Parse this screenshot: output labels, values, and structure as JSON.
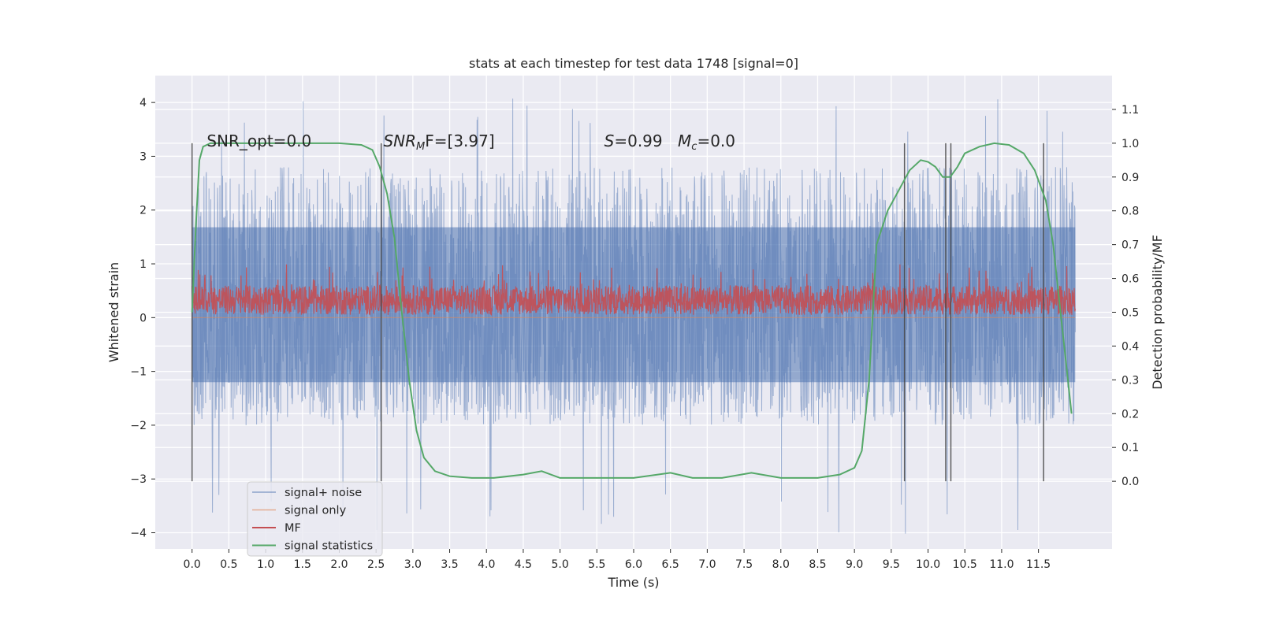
{
  "chart_data": {
    "type": "line",
    "title": "stats at each timestep for test data 1748 [signal=0]",
    "xlabel": "Time (s)",
    "ylabel_left": "Whitened strain",
    "ylabel_right": "Detection probability/MF",
    "xlim": [
      -0.5,
      12.5
    ],
    "ylim_left": [
      -4.3,
      4.5
    ],
    "ylim_right": [
      -0.2,
      1.2
    ],
    "x_ticks": [
      0.0,
      0.5,
      1.0,
      1.5,
      2.0,
      2.5,
      3.0,
      3.5,
      4.0,
      4.5,
      5.0,
      5.5,
      6.0,
      6.5,
      7.0,
      7.5,
      8.0,
      8.5,
      9.0,
      9.5,
      10.0,
      10.5,
      11.0,
      11.5
    ],
    "x_tick_labels": [
      "0.0",
      "0.5",
      "1.0",
      "1.5",
      "2.0",
      "2.5",
      "3.0",
      "3.5",
      "4.0",
      "4.5",
      "5.0",
      "5.5",
      "6.0",
      "6.5",
      "7.0",
      "7.5",
      "8.0",
      "8.5",
      "9.0",
      "9.5",
      "10.0",
      "10.5",
      "11.0",
      "11.5"
    ],
    "y_left_ticks": [
      -4,
      -3,
      -2,
      -1,
      0,
      1,
      2,
      3,
      4
    ],
    "y_left_tick_labels": [
      "−4",
      "−3",
      "−2",
      "−1",
      "0",
      "1",
      "2",
      "3",
      "4"
    ],
    "y_right_ticks": [
      0.0,
      0.1,
      0.2,
      0.3,
      0.4,
      0.5,
      0.6,
      0.7,
      0.8,
      0.9,
      1.0,
      1.1
    ],
    "y_right_tick_labels": [
      "0.0",
      "0.1",
      "0.2",
      "0.3",
      "0.4",
      "0.5",
      "0.6",
      "0.7",
      "0.8",
      "0.9",
      "1.0",
      "1.1"
    ],
    "grid": true,
    "legend_placement": "lower-left",
    "annotations": {
      "snr_opt": "SNR_opt=0.0",
      "snr_mf_prefix": "SNR",
      "snr_mf_sub": "M",
      "snr_mf_suffix": "F=[3.97]",
      "s_prefix": "S",
      "s_value": "=0.99",
      "mc_prefix": "M",
      "mc_sub": "c",
      "mc_value": "=0.0"
    },
    "vertical_markers": [
      0.0,
      2.57,
      9.68,
      10.24,
      10.31,
      11.57
    ],
    "series": [
      {
        "name": "signal+ noise",
        "color": "#4c72b0",
        "kind": "noise",
        "x_range": [
          0.0,
          12.0
        ],
        "typical_range": [
          -2.0,
          2.8
        ],
        "extremes": [
          -4.05,
          4.1
        ]
      },
      {
        "name": "signal only",
        "color": "#dd8452",
        "kind": "flat",
        "value": 0.0
      },
      {
        "name": "MF",
        "color": "#c44e52",
        "kind": "band",
        "x_range": [
          0.0,
          12.0
        ],
        "typical_range": [
          0.05,
          0.6
        ],
        "peak": 1.0
      },
      {
        "name": "signal statistics",
        "color": "#55a868",
        "kind": "line",
        "x": [
          0.0,
          0.05,
          0.1,
          0.15,
          0.25,
          0.5,
          1.0,
          1.5,
          2.0,
          2.3,
          2.45,
          2.55,
          2.65,
          2.75,
          2.85,
          2.95,
          3.05,
          3.15,
          3.3,
          3.5,
          3.8,
          4.1,
          4.5,
          4.75,
          5.0,
          5.5,
          6.0,
          6.5,
          6.8,
          7.2,
          7.6,
          8.0,
          8.5,
          8.8,
          9.0,
          9.1,
          9.2,
          9.3,
          9.45,
          9.6,
          9.75,
          9.9,
          10.0,
          10.1,
          10.2,
          10.3,
          10.4,
          10.5,
          10.7,
          10.9,
          11.1,
          11.3,
          11.45,
          11.6,
          11.7,
          11.8,
          11.9,
          11.95
        ],
        "values": [
          0.5,
          0.75,
          0.95,
          0.99,
          1.0,
          1.0,
          1.0,
          1.0,
          1.0,
          0.995,
          0.98,
          0.93,
          0.85,
          0.72,
          0.5,
          0.3,
          0.15,
          0.07,
          0.03,
          0.015,
          0.01,
          0.01,
          0.02,
          0.03,
          0.01,
          0.01,
          0.01,
          0.025,
          0.01,
          0.01,
          0.025,
          0.01,
          0.01,
          0.02,
          0.04,
          0.09,
          0.3,
          0.7,
          0.8,
          0.86,
          0.92,
          0.95,
          0.945,
          0.93,
          0.9,
          0.9,
          0.93,
          0.97,
          0.99,
          1.0,
          0.995,
          0.97,
          0.92,
          0.83,
          0.7,
          0.5,
          0.3,
          0.2
        ]
      }
    ]
  }
}
